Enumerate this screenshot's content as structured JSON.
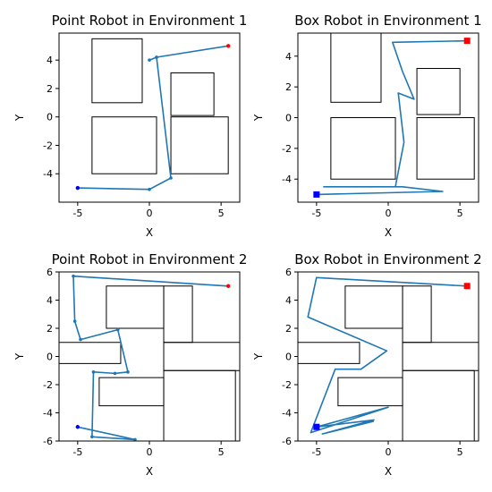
{
  "chart_data": [
    {
      "type": "line",
      "title": "Point Robot in Environment 1",
      "xlabel": "X",
      "ylabel": "Y",
      "xlim": [
        -6.3,
        6.3
      ],
      "ylim": [
        -6.0,
        5.9
      ],
      "xticks": [
        -5,
        0,
        5
      ],
      "yticks": [
        -4,
        -2,
        0,
        2,
        4
      ],
      "obstacles": [
        {
          "x0": -4.0,
          "y0": 1.0,
          "x1": -0.5,
          "y1": 5.5
        },
        {
          "x0": 1.5,
          "y0": 0.1,
          "x1": 4.5,
          "y1": 3.1
        },
        {
          "x0": -4.0,
          "y0": -4.0,
          "x1": 0.5,
          "y1": 0.0
        },
        {
          "x0": 1.5,
          "y0": -4.0,
          "x1": 5.5,
          "y1": 0.0
        }
      ],
      "path": [
        [
          5.5,
          5.0
        ],
        [
          0.5,
          4.2
        ],
        [
          0.0,
          4.0
        ],
        [
          0.5,
          4.2
        ],
        [
          1.5,
          -4.3
        ],
        [
          0.0,
          -5.1
        ],
        [
          -5.0,
          -5.0
        ]
      ],
      "marker": "dot",
      "start": [
        -5.0,
        -5.0
      ],
      "goal": [
        5.5,
        5.0
      ]
    },
    {
      "type": "line",
      "title": "Box Robot in Environment 1",
      "xlabel": "X",
      "ylabel": "Y",
      "xlim": [
        -6.3,
        6.3
      ],
      "ylim": [
        -5.5,
        5.5
      ],
      "xticks": [
        -5,
        0,
        5
      ],
      "yticks": [
        -4,
        -2,
        0,
        2,
        4
      ],
      "obstacles": [
        {
          "x0": -4.0,
          "y0": 1.0,
          "x1": -0.5,
          "y1": 5.5
        },
        {
          "x0": 2.0,
          "y0": 0.2,
          "x1": 5.0,
          "y1": 3.2
        },
        {
          "x0": -4.0,
          "y0": -4.0,
          "x1": 0.5,
          "y1": 0.0
        },
        {
          "x0": 2.0,
          "y0": -4.0,
          "x1": 6.0,
          "y1": 0.0
        }
      ],
      "path": [
        [
          5.5,
          5.0
        ],
        [
          0.3,
          4.9
        ],
        [
          1.0,
          3.0
        ],
        [
          1.8,
          1.2
        ],
        [
          0.7,
          1.6
        ],
        [
          1.1,
          -1.6
        ],
        [
          0.5,
          -4.5
        ],
        [
          -4.5,
          -4.5
        ],
        [
          1.0,
          -4.5
        ],
        [
          3.8,
          -4.8
        ],
        [
          -5.0,
          -5.0
        ]
      ],
      "marker": "square",
      "start": [
        -5.0,
        -5.0
      ],
      "goal": [
        5.5,
        5.0
      ]
    },
    {
      "type": "line",
      "title": "Point Robot in Environment 2",
      "xlabel": "X",
      "ylabel": "Y",
      "xlim": [
        -6.3,
        6.3
      ],
      "ylim": [
        -6.0,
        6.0
      ],
      "xticks": [
        -5,
        0,
        5
      ],
      "yticks": [
        -6,
        -4,
        -2,
        0,
        2,
        4,
        6
      ],
      "obstacles": [
        {
          "x0": -3.0,
          "y0": 2.0,
          "x1": 1.0,
          "y1": 5.0
        },
        {
          "x0": 1.0,
          "y0": 1.0,
          "x1": 3.0,
          "y1": 5.0
        },
        {
          "x0": -6.3,
          "y0": -0.5,
          "x1": -2.0,
          "y1": 1.0
        },
        {
          "x0": 1.0,
          "y0": -1.0,
          "x1": 6.3,
          "y1": 1.0
        },
        {
          "x0": -3.5,
          "y0": -3.5,
          "x1": 1.0,
          "y1": -1.5
        },
        {
          "x0": 1.0,
          "y0": -6.0,
          "x1": 6.0,
          "y1": -1.0
        }
      ],
      "path": [
        [
          5.5,
          5.0
        ],
        [
          -5.3,
          5.7
        ],
        [
          -5.2,
          2.5
        ],
        [
          -4.8,
          1.2
        ],
        [
          -2.2,
          1.9
        ],
        [
          -1.5,
          -1.1
        ],
        [
          -2.4,
          -1.2
        ],
        [
          -3.9,
          -1.1
        ],
        [
          -4.0,
          -5.7
        ],
        [
          -1.0,
          -5.9
        ],
        [
          -5.0,
          -5.0
        ]
      ],
      "marker": "dot",
      "start": [
        -5.0,
        -5.0
      ],
      "goal": [
        5.5,
        5.0
      ]
    },
    {
      "type": "line",
      "title": "Box Robot in Environment 2",
      "xlabel": "X",
      "ylabel": "Y",
      "xlim": [
        -6.3,
        6.3
      ],
      "ylim": [
        -6.0,
        6.0
      ],
      "xticks": [
        -5,
        0,
        5
      ],
      "yticks": [
        -6,
        -4,
        -2,
        0,
        2,
        4,
        6
      ],
      "obstacles": [
        {
          "x0": -3.0,
          "y0": 2.0,
          "x1": 1.0,
          "y1": 5.0
        },
        {
          "x0": 1.0,
          "y0": 1.0,
          "x1": 3.0,
          "y1": 5.0
        },
        {
          "x0": -6.3,
          "y0": -0.5,
          "x1": -2.0,
          "y1": 1.0
        },
        {
          "x0": 1.0,
          "y0": -1.0,
          "x1": 6.3,
          "y1": 1.0
        },
        {
          "x0": -3.5,
          "y0": -3.5,
          "x1": 1.0,
          "y1": -1.5
        },
        {
          "x0": 1.0,
          "y0": -6.0,
          "x1": 6.0,
          "y1": -1.0
        }
      ],
      "path": [
        [
          5.5,
          5.0
        ],
        [
          -5.0,
          5.6
        ],
        [
          -5.6,
          2.8
        ],
        [
          -0.1,
          0.4
        ],
        [
          -1.9,
          -0.9
        ],
        [
          -3.7,
          -0.9
        ],
        [
          -5.4,
          -5.4
        ],
        [
          0.0,
          -3.6
        ],
        [
          -5.0,
          -5.0
        ],
        [
          -1.0,
          -4.5
        ],
        [
          -4.6,
          -5.5
        ],
        [
          -1.0,
          -4.6
        ]
      ],
      "marker": "square",
      "start": [
        -5.0,
        -5.0
      ],
      "goal": [
        5.5,
        5.0
      ]
    }
  ],
  "colors": {
    "path": "#1f77b4",
    "start": "#0000ff",
    "goal": "#ff0000"
  }
}
